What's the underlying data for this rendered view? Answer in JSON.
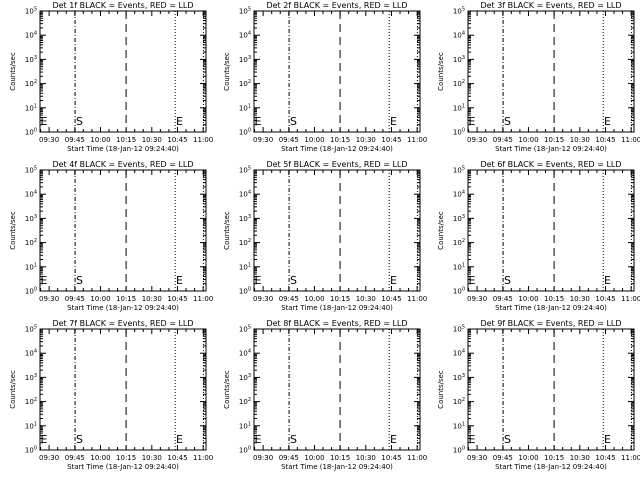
{
  "chart_data": {
    "type": "line",
    "panel_layout": {
      "columns": 3,
      "rows": 3
    },
    "shared": {
      "ylabel": "Counts/sec",
      "xlabel": "Start Time (18-Jan-12 09:24:40)",
      "x_tick_labels": [
        "09:30",
        "09:45",
        "10:00",
        "10:15",
        "10:30",
        "10:45",
        "11:00"
      ],
      "x_tick_minutes": [
        5.33,
        20.33,
        35.33,
        50.33,
        65.33,
        80.33,
        95.33
      ],
      "x_range_minutes": [
        0,
        97
      ],
      "y_scale": "log",
      "y_range": [
        1,
        100000
      ],
      "y_tick_base": "10",
      "y_tick_exponents": [
        "0",
        "1",
        "2",
        "3",
        "4",
        "5"
      ],
      "series_lines": [],
      "markers": [
        {
          "label": "E",
          "x_minutes": 0.3
        },
        {
          "label": "S",
          "x_minutes": 21.0
        },
        {
          "label": "E",
          "x_minutes": 79.5
        }
      ],
      "vertical_lines": [
        {
          "style": "dash-dot",
          "x_minutes": 20.5
        },
        {
          "style": "dashed",
          "x_minutes": 50.3
        },
        {
          "style": "dotted",
          "x_minutes": 79.0
        },
        {
          "style": "dotted",
          "x_minutes": 95.5
        }
      ]
    },
    "panels": [
      {
        "title": "Det 1f BLACK = Events, RED = LLD"
      },
      {
        "title": "Det 2f BLACK = Events, RED = LLD"
      },
      {
        "title": "Det 3f BLACK = Events, RED = LLD"
      },
      {
        "title": "Det 4f BLACK = Events, RED = LLD"
      },
      {
        "title": "Det 5f BLACK = Events, RED = LLD"
      },
      {
        "title": "Det 6f BLACK = Events, RED = LLD"
      },
      {
        "title": "Det 7f BLACK = Events, RED = LLD"
      },
      {
        "title": "Det 8f BLACK = Events, RED = LLD"
      },
      {
        "title": "Det 9f BLACK = Events, RED = LLD"
      }
    ],
    "colors": {
      "axes": "#000000",
      "background": "#ffffff"
    }
  }
}
